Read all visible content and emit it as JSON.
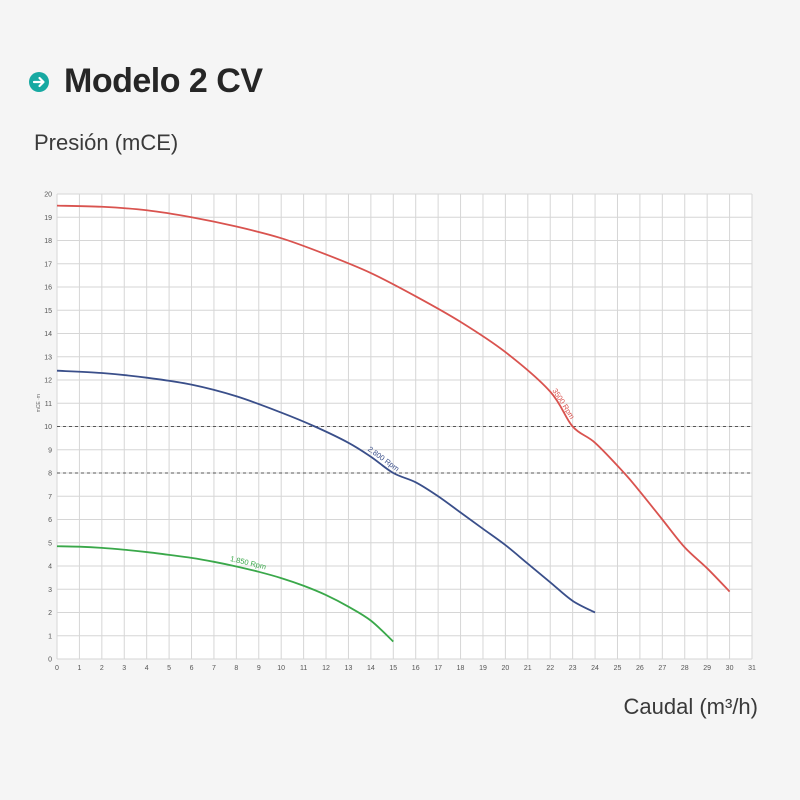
{
  "header": {
    "title": "Modelo 2 CV",
    "icon": "arrow-right-circle-icon",
    "accent_color": "#17a9a2"
  },
  "chart_data": {
    "type": "line",
    "title": "Modelo 2 CV",
    "xlabel": "Caudal (m³/h)",
    "ylabel": "Presión (mCE)",
    "y_side_label": "mCE ·m",
    "xlim": [
      0,
      31
    ],
    "ylim": [
      0,
      20
    ],
    "x_ticks": [
      0,
      1,
      2,
      3,
      4,
      5,
      6,
      7,
      8,
      9,
      10,
      11,
      12,
      13,
      14,
      15,
      16,
      17,
      18,
      19,
      20,
      21,
      22,
      23,
      24,
      25,
      26,
      27,
      28,
      29,
      30,
      31
    ],
    "y_ticks": [
      0,
      1,
      2,
      3,
      4,
      5,
      6,
      7,
      8,
      9,
      10,
      11,
      12,
      13,
      14,
      15,
      16,
      17,
      18,
      19,
      20
    ],
    "grid": true,
    "reference_lines_y": [
      10,
      8
    ],
    "series": [
      {
        "name": "3500 Rpm",
        "color": "#d9534f",
        "x": [
          0,
          2,
          4,
          6,
          8,
          10,
          12,
          14,
          16,
          18,
          20,
          22,
          23,
          24,
          25.3,
          26,
          27,
          28,
          29,
          30
        ],
        "y": [
          19.5,
          19.45,
          19.3,
          19.0,
          18.6,
          18.1,
          17.4,
          16.6,
          15.6,
          14.5,
          13.2,
          11.5,
          10.0,
          9.3,
          8.0,
          7.2,
          6.0,
          4.8,
          3.9,
          2.9
        ]
      },
      {
        "name": "2.800 Rpm",
        "color": "#3a4f8a",
        "x": [
          0,
          2,
          4,
          6,
          8,
          10,
          11.5,
          13,
          14,
          15,
          16,
          17,
          18,
          19,
          20,
          21,
          22,
          23,
          24
        ],
        "y": [
          12.4,
          12.3,
          12.1,
          11.8,
          11.3,
          10.6,
          10.0,
          9.3,
          8.7,
          8.0,
          7.6,
          7.0,
          6.3,
          5.6,
          4.9,
          4.1,
          3.3,
          2.5,
          2.0
        ]
      },
      {
        "name": "1.850 Rpm",
        "color": "#3aa84a",
        "x": [
          0,
          1,
          2,
          3,
          4,
          5,
          6,
          7,
          8,
          9,
          10,
          11,
          12,
          13,
          14,
          15
        ],
        "y": [
          4.85,
          4.83,
          4.78,
          4.7,
          4.6,
          4.48,
          4.35,
          4.18,
          3.98,
          3.75,
          3.48,
          3.15,
          2.75,
          2.25,
          1.65,
          0.75
        ]
      }
    ]
  }
}
